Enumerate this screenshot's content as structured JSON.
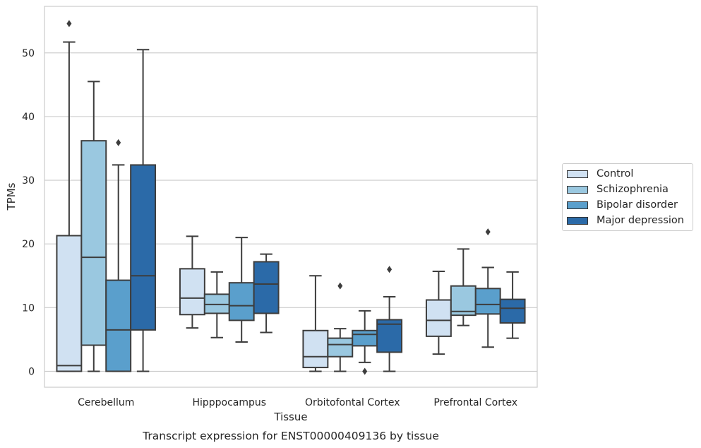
{
  "chart_data": {
    "type": "box",
    "title": "Transcript expression for ENST00000409136 by tissue",
    "xlabel": "Tissue",
    "ylabel": "TPMs",
    "ylim": [
      -2.5,
      57.3
    ],
    "yticks": [
      0,
      10,
      20,
      30,
      40,
      50
    ],
    "grid": "horizontal",
    "legend_position": "right",
    "categories": [
      "Cerebellum",
      "Hipppocampus",
      "Orbitofontal Cortex",
      "Prefrontal Cortex"
    ],
    "series": [
      {
        "name": "Control",
        "color": "#d0e1f2",
        "boxes": [
          {
            "whisker_low": 0.0,
            "q1": 0.0,
            "median": 0.9,
            "q3": 21.3,
            "whisker_high": 51.7,
            "outliers": [
              54.6
            ]
          },
          {
            "whisker_low": 6.8,
            "q1": 8.9,
            "median": 11.5,
            "q3": 16.1,
            "whisker_high": 21.2,
            "outliers": []
          },
          {
            "whisker_low": 0.0,
            "q1": 0.6,
            "median": 2.3,
            "q3": 6.4,
            "whisker_high": 15.0,
            "outliers": []
          },
          {
            "whisker_low": 2.7,
            "q1": 5.5,
            "median": 8.0,
            "q3": 11.2,
            "whisker_high": 15.7,
            "outliers": []
          }
        ]
      },
      {
        "name": "Schizophrenia",
        "color": "#9ac8e0",
        "boxes": [
          {
            "whisker_low": 0.0,
            "q1": 4.1,
            "median": 17.9,
            "q3": 36.2,
            "whisker_high": 45.5,
            "outliers": []
          },
          {
            "whisker_low": 5.3,
            "q1": 9.1,
            "median": 10.5,
            "q3": 12.1,
            "whisker_high": 15.6,
            "outliers": []
          },
          {
            "whisker_low": 0.0,
            "q1": 2.3,
            "median": 4.2,
            "q3": 5.2,
            "whisker_high": 6.7,
            "outliers": [
              13.4
            ]
          },
          {
            "whisker_low": 7.2,
            "q1": 8.8,
            "median": 9.4,
            "q3": 13.4,
            "whisker_high": 19.2,
            "outliers": []
          }
        ]
      },
      {
        "name": "Bipolar disorder",
        "color": "#5a9fcc",
        "boxes": [
          {
            "whisker_low": 0.0,
            "q1": 0.0,
            "median": 6.5,
            "q3": 14.3,
            "whisker_high": 32.4,
            "outliers": [
              35.9
            ]
          },
          {
            "whisker_low": 4.6,
            "q1": 8.0,
            "median": 10.3,
            "q3": 13.9,
            "whisker_high": 21.0,
            "outliers": []
          },
          {
            "whisker_low": 1.4,
            "q1": 4.0,
            "median": 5.8,
            "q3": 6.4,
            "whisker_high": 9.5,
            "outliers": [
              0.0
            ]
          },
          {
            "whisker_low": 3.8,
            "q1": 9.0,
            "median": 10.5,
            "q3": 13.0,
            "whisker_high": 16.3,
            "outliers": [
              21.9
            ]
          }
        ]
      },
      {
        "name": "Major depression",
        "color": "#2b6aa8",
        "boxes": [
          {
            "whisker_low": 0.0,
            "q1": 6.5,
            "median": 15.0,
            "q3": 32.4,
            "whisker_high": 50.5,
            "outliers": []
          },
          {
            "whisker_low": 6.1,
            "q1": 9.1,
            "median": 13.7,
            "q3": 17.2,
            "whisker_high": 18.4,
            "outliers": []
          },
          {
            "whisker_low": 0.0,
            "q1": 3.0,
            "median": 7.4,
            "q3": 8.1,
            "whisker_high": 11.7,
            "outliers": [
              16.0
            ]
          },
          {
            "whisker_low": 5.2,
            "q1": 7.6,
            "median": 9.9,
            "q3": 11.3,
            "whisker_high": 15.6,
            "outliers": []
          }
        ]
      }
    ]
  }
}
